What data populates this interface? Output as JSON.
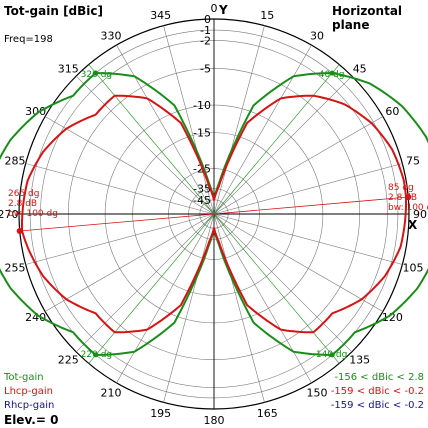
{
  "header": {
    "title": "Tot-gain [dBic]",
    "plane": "Horizontal plane",
    "freq": "Freq=198"
  },
  "axis_markers": {
    "y": "Y",
    "x": "X"
  },
  "legend": {
    "tot": "Tot-gain",
    "lhcp": "Lhcp-gain",
    "rhcp": "Rhcp-gain",
    "elev": "Elev.= 0",
    "tot_range": "-156 < dBic < 2.8",
    "lhcp_range": "-159 < dBic < -0.2",
    "rhcp_range": "-159 < dBic < -0.2"
  },
  "colors": {
    "tot": "#1a8c1a",
    "lhcp": "#d41414",
    "rhcp": "#14148c",
    "grid": "#7a7a7a"
  },
  "chart_data": {
    "type": "polar",
    "title": "Tot-gain [dBic]",
    "plane": "Horizontal plane",
    "angle_ticks": [
      "0",
      "15",
      "30",
      "45",
      "60",
      "75",
      "90",
      "105",
      "120",
      "135",
      "150",
      "165",
      "180",
      "195",
      "210",
      "225",
      "240",
      "255",
      "270",
      "285",
      "300",
      "315",
      "330",
      "345"
    ],
    "radial_ticks": [
      "0",
      "-1",
      "-2",
      "-5",
      "-10",
      "-15",
      "-25",
      "-35",
      "-45"
    ],
    "radial_db_values": [
      0,
      -1,
      -2,
      -5,
      -10,
      -15,
      -25,
      -35,
      -45
    ],
    "series": [
      {
        "name": "Tot-gain",
        "range_db": [
          -156,
          2.8
        ],
        "angles_deg": [
          0,
          10,
          20,
          30,
          40,
          50,
          60,
          70,
          80,
          85,
          90,
          100,
          110,
          120,
          130,
          140,
          150,
          160,
          170,
          180,
          190,
          200,
          210,
          220,
          230,
          240,
          250,
          260,
          265,
          270,
          280,
          290,
          300,
          310,
          320,
          330,
          340,
          350
        ],
        "gain_dbic": [
          -45,
          -30,
          -9,
          -3.5,
          -1.0,
          0.7,
          1.8,
          2.5,
          2.8,
          2.8,
          2.7,
          2.5,
          1.8,
          0.7,
          -1.0,
          -1.0,
          -3.5,
          -9,
          -30,
          -45,
          -30,
          -9,
          -3.5,
          -1.0,
          -1.0,
          0.7,
          1.8,
          2.5,
          2.8,
          2.7,
          2.5,
          1.8,
          0.7,
          -1.0,
          -1.0,
          -3.5,
          -9,
          -30
        ]
      },
      {
        "name": "Lhcp-gain",
        "range_db": [
          -159,
          -0.2
        ],
        "angles_deg": [
          0,
          10,
          20,
          30,
          40,
          50,
          60,
          70,
          80,
          85,
          90,
          100,
          110,
          120,
          130,
          140,
          150,
          160,
          170,
          180,
          190,
          200,
          210,
          220,
          230,
          240,
          250,
          260,
          265,
          270,
          280,
          290,
          300,
          310,
          320,
          330,
          340,
          350
        ],
        "gain_dbic": [
          -45,
          -33,
          -12,
          -6.5,
          -4,
          -2.3,
          -1.2,
          -0.5,
          -0.2,
          -0.2,
          -0.3,
          -0.5,
          -1.2,
          -2.3,
          -4,
          -4,
          -6.5,
          -12,
          -33,
          -45,
          -33,
          -12,
          -6.5,
          -4,
          -4,
          -2.3,
          -1.2,
          -0.5,
          -0.2,
          -0.3,
          -0.5,
          -1.2,
          -2.3,
          -4,
          -4,
          -6.5,
          -12,
          -33
        ]
      }
    ],
    "annotations": [
      {
        "angle_deg": 85,
        "lines": [
          "85 dg",
          "2.8 dB",
          "bw: 100 dg"
        ]
      },
      {
        "angle_deg": 265,
        "lines": [
          "265 dg",
          "2.8 dB",
          "bw: 100 dg"
        ]
      }
    ],
    "beamwidth_markers": [
      "40 dg",
      "140 dg",
      "220 dg",
      "320 dg"
    ]
  }
}
